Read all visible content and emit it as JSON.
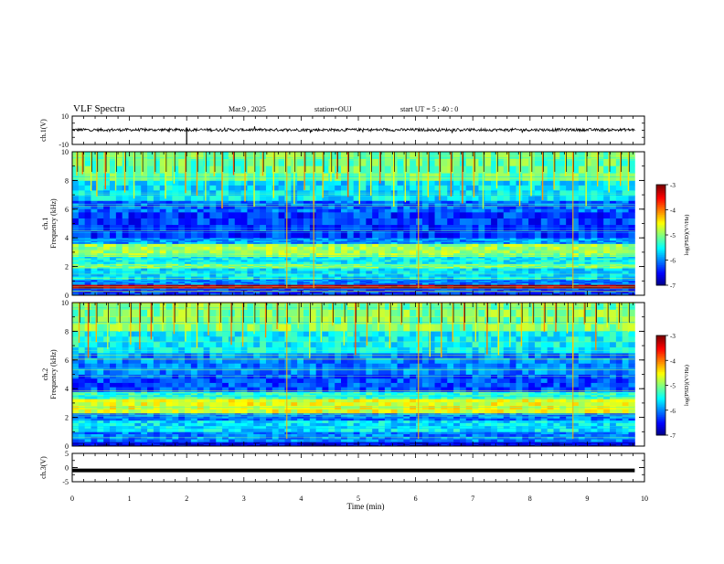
{
  "header": {
    "title": "VLF Spectra",
    "date": "Mar.9  , 2025",
    "station": "station=OUJ",
    "start": "start  UT =   5  : 40 : 0"
  },
  "chart_data": [
    {
      "type": "line",
      "panel": "ch1-waveform",
      "ylabel": "ch.1(V)",
      "ylim": [
        -10,
        10
      ],
      "yticks": [
        "10",
        "-10"
      ],
      "xlim": [
        0,
        10
      ],
      "baseline": 0,
      "note_values": "noisy waveform around 0 V; spike near t=2.0 min",
      "spikes": [
        {
          "x": 2.0,
          "y": -10
        }
      ]
    },
    {
      "type": "heatmap",
      "panel": "ch1-spectrogram",
      "ylabel": "ch.1\nFrequency  (kHz)",
      "ylim": [
        0,
        10
      ],
      "yticks": [
        "0",
        "2",
        "4",
        "6",
        "8",
        "10"
      ],
      "xlim": [
        0,
        9.83
      ],
      "colorbar": {
        "label": "log(PSD)(V²/Hz)",
        "ticks": [
          "-3",
          "-4",
          "-5",
          "-6",
          "-7"
        ],
        "range": [
          -7,
          -3
        ]
      },
      "bands": [
        {
          "f0": 0.0,
          "f1": 0.5,
          "level": -6.3
        },
        {
          "f0": 0.5,
          "f1": 0.75,
          "level": -3.2
        },
        {
          "f0": 0.75,
          "f1": 1.1,
          "level": -6.0
        },
        {
          "f0": 1.1,
          "f1": 1.9,
          "level": -5.6
        },
        {
          "f0": 1.9,
          "f1": 2.2,
          "level": -5.0
        },
        {
          "f0": 2.2,
          "f1": 2.7,
          "level": -5.5
        },
        {
          "f0": 2.7,
          "f1": 3.6,
          "level": -4.9
        },
        {
          "f0": 3.6,
          "f1": 4.0,
          "level": -5.9
        },
        {
          "f0": 4.0,
          "f1": 5.8,
          "level": -6.3
        },
        {
          "f0": 5.8,
          "f1": 6.6,
          "level": -6.1
        },
        {
          "f0": 6.6,
          "f1": 8.0,
          "level": -5.6
        },
        {
          "f0": 8.0,
          "f1": 10.0,
          "level": -5.1
        }
      ],
      "sferics": [
        0.08,
        0.18,
        0.33,
        0.43,
        0.58,
        0.76,
        0.92,
        1.08,
        1.22,
        1.44,
        1.63,
        1.78,
        1.98,
        2.18,
        2.33,
        2.48,
        2.62,
        2.82,
        3.02,
        3.18,
        3.33,
        3.52,
        3.72,
        3.88,
        4.06,
        4.22,
        4.38,
        4.52,
        4.63,
        4.82,
        5.02,
        5.22,
        5.38,
        5.62,
        5.82,
        6.05,
        6.22,
        6.42,
        6.62,
        6.82,
        7.02,
        7.18,
        7.42,
        7.62,
        7.82,
        8.02,
        8.22,
        8.42,
        8.62,
        8.75,
        8.98,
        9.18,
        9.38,
        9.58,
        9.72
      ],
      "strong_events": [
        3.75,
        4.22,
        6.05,
        8.75
      ]
    },
    {
      "type": "heatmap",
      "panel": "ch2-spectrogram",
      "ylabel": "ch.2\nFrequency  (kHz)",
      "ylim": [
        0,
        10
      ],
      "yticks": [
        "0",
        "2",
        "4",
        "6",
        "8",
        "10"
      ],
      "xlim": [
        0,
        9.83
      ],
      "colorbar": {
        "label": "log(PSD)(V²/Hz)",
        "ticks": [
          "-3",
          "-4",
          "-5",
          "-6",
          "-7"
        ],
        "range": [
          -7,
          -3
        ]
      },
      "bands": [
        {
          "f0": 0.0,
          "f1": 0.3,
          "level": -6.6
        },
        {
          "f0": 0.3,
          "f1": 1.0,
          "level": -6.0
        },
        {
          "f0": 1.0,
          "f1": 1.8,
          "level": -5.6
        },
        {
          "f0": 1.8,
          "f1": 2.3,
          "level": -6.0
        },
        {
          "f0": 2.3,
          "f1": 3.3,
          "level": -4.6
        },
        {
          "f0": 3.3,
          "f1": 3.8,
          "level": -5.3
        },
        {
          "f0": 3.8,
          "f1": 5.0,
          "level": -6.2
        },
        {
          "f0": 5.0,
          "f1": 6.5,
          "level": -6.0
        },
        {
          "f0": 6.5,
          "f1": 8.0,
          "level": -5.5
        },
        {
          "f0": 8.0,
          "f1": 10.0,
          "level": -5.0
        }
      ],
      "sferics": [
        0.12,
        0.28,
        0.42,
        0.62,
        0.82,
        1.02,
        1.18,
        1.38,
        1.58,
        1.78,
        1.98,
        2.18,
        2.38,
        2.58,
        2.78,
        2.98,
        3.18,
        3.38,
        3.58,
        3.75,
        3.95,
        4.15,
        4.35,
        4.55,
        4.75,
        4.95,
        5.15,
        5.35,
        5.55,
        5.75,
        6.05,
        6.25,
        6.45,
        6.65,
        6.85,
        7.05,
        7.25,
        7.45,
        7.65,
        7.85,
        8.05,
        8.25,
        8.45,
        8.65,
        8.75,
        8.95,
        9.15,
        9.35,
        9.55,
        9.72
      ],
      "strong_events": [
        3.75,
        6.05,
        8.75
      ]
    },
    {
      "type": "line",
      "panel": "ch3-waveform",
      "ylabel": "ch.3(V)",
      "ylim": [
        -5,
        5
      ],
      "yticks": [
        "5",
        "0",
        "-5"
      ],
      "xlim": [
        0,
        10
      ],
      "note_values": "flat thick line at about -1 V across 0–9.83 min",
      "level": -1.0,
      "x_end": 9.83
    }
  ],
  "x_axis": {
    "label": "Time  (min)",
    "ticks": [
      "0",
      "1",
      "2",
      "3",
      "4",
      "5",
      "6",
      "7",
      "8",
      "9",
      "10"
    ]
  }
}
